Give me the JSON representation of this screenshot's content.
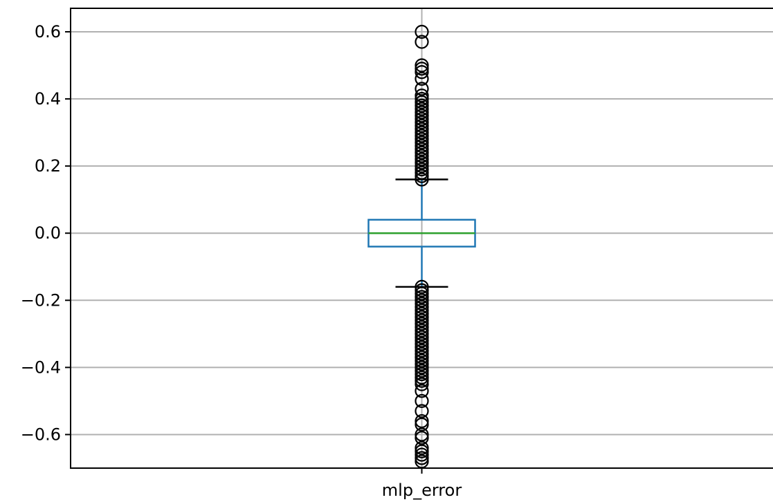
{
  "chart_data": {
    "type": "box",
    "categories": [
      "mlp_error"
    ],
    "ylim": [
      -0.7,
      0.67
    ],
    "yticks": [
      -0.6,
      -0.4,
      -0.2,
      0.0,
      0.2,
      0.4,
      0.6
    ],
    "ytick_labels": [
      "−0.6",
      "−0.4",
      "−0.2",
      "0.0",
      "0.2",
      "0.4",
      "0.6"
    ],
    "grid": true,
    "series": [
      {
        "category": "mlp_error",
        "whisker_low": -0.16,
        "q1": -0.04,
        "median": 0.0,
        "q3": 0.04,
        "whisker_high": 0.16,
        "outliers_high": [
          0.16,
          0.17,
          0.18,
          0.19,
          0.2,
          0.21,
          0.22,
          0.23,
          0.24,
          0.25,
          0.26,
          0.27,
          0.28,
          0.29,
          0.3,
          0.31,
          0.32,
          0.33,
          0.34,
          0.35,
          0.36,
          0.37,
          0.38,
          0.39,
          0.4,
          0.41,
          0.43,
          0.46,
          0.48,
          0.49,
          0.5,
          0.57,
          0.6
        ],
        "outliers_low": [
          -0.16,
          -0.17,
          -0.18,
          -0.19,
          -0.2,
          -0.21,
          -0.22,
          -0.23,
          -0.24,
          -0.25,
          -0.26,
          -0.27,
          -0.28,
          -0.29,
          -0.3,
          -0.31,
          -0.32,
          -0.33,
          -0.34,
          -0.35,
          -0.36,
          -0.37,
          -0.38,
          -0.39,
          -0.4,
          -0.41,
          -0.42,
          -0.43,
          -0.44,
          -0.45,
          -0.47,
          -0.5,
          -0.53,
          -0.56,
          -0.57,
          -0.6,
          -0.61,
          -0.64,
          -0.65,
          -0.66,
          -0.67,
          -0.68
        ]
      }
    ],
    "colors": {
      "box": "#1f77b4",
      "median": "#2ca02c",
      "whisker_cap": "#000000",
      "flier": "#000000",
      "grid": "#b0b0b0"
    }
  }
}
